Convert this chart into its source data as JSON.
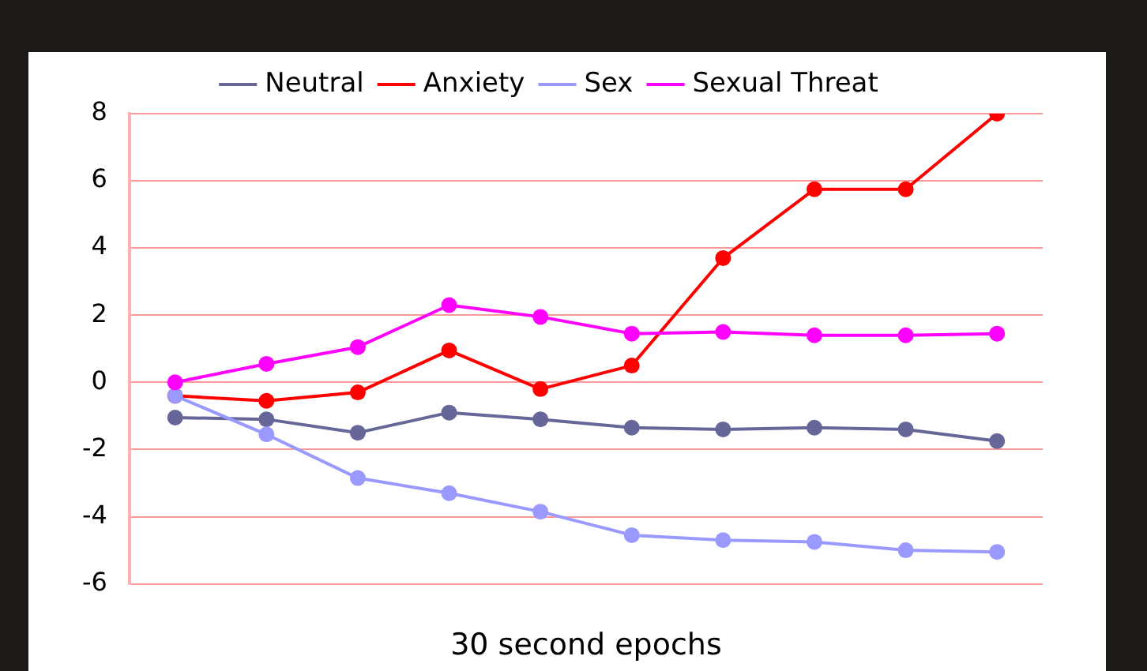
{
  "chart_data": {
    "type": "line",
    "xlabel": "30 second epochs",
    "categories": [
      null,
      null,
      null,
      null,
      null,
      null,
      null,
      null,
      null,
      null
    ],
    "series": [
      {
        "name": "Neutral",
        "color": "#666699",
        "values": [
          -1.05,
          -1.1,
          -1.5,
          -0.9,
          -1.1,
          -1.35,
          -1.4,
          -1.35,
          -1.4,
          -1.75
        ]
      },
      {
        "name": "Anxiety",
        "color": "#ff0000",
        "values": [
          -0.4,
          -0.55,
          -0.3,
          0.95,
          -0.2,
          0.5,
          3.7,
          5.75,
          5.75,
          8
        ]
      },
      {
        "name": "Sex",
        "color": "#9999ff",
        "values": [
          -0.4,
          -1.55,
          -2.85,
          -3.3,
          -3.85,
          -4.55,
          -4.7,
          -4.75,
          -5,
          -5.05
        ]
      },
      {
        "name": "Sexual Threat",
        "color": "#ff00ff",
        "values": [
          0,
          0.55,
          1.05,
          2.3,
          1.95,
          1.45,
          1.5,
          1.4,
          1.4,
          1.45
        ]
      }
    ],
    "ylim": [
      -6,
      8
    ],
    "yticks": [
      -6,
      -4,
      -2,
      0,
      2,
      4,
      6,
      8
    ],
    "grid": "y",
    "legend": "top",
    "marker": "circle",
    "line_style": "solid"
  }
}
